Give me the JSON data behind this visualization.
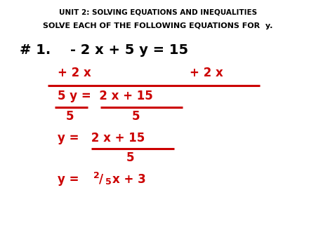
{
  "bg_color": "#ffffff",
  "title1": "UNIT 2: SOLVING EQUATIONS AND INEQUALITIES",
  "title2": "SOLVE EACH OF THE FOLLOWING EQUATIONS FOR  y.",
  "red": "#cc0000",
  "black": "#000000",
  "figsize": [
    4.5,
    3.38
  ],
  "dpi": 100
}
